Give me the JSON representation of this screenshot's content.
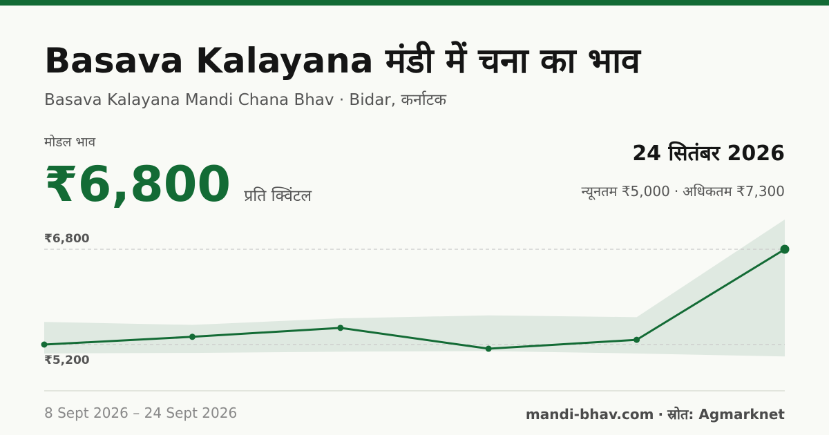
{
  "header": {
    "title": "Basava Kalayana मंडी में चना का भाव",
    "subtitle": "Basava Kalayana Mandi Chana Bhav · Bidar, कर्नाटक"
  },
  "price": {
    "label": "मोडल भाव",
    "value": "₹6,800",
    "unit": "प्रति क्विंटल"
  },
  "summary": {
    "date": "24 सितंबर 2026",
    "min_text": "न्यूनतम ₹5,000",
    "separator": "·",
    "max_text": "अधिकतम ₹7,300"
  },
  "chart_data": {
    "type": "line",
    "x": [
      "8 Sept 2026",
      "",
      "",
      "",
      "",
      "24 Sept 2026"
    ],
    "series": [
      {
        "values": [
          5200,
          5330,
          5480,
          5130,
          5280,
          6800
        ]
      }
    ],
    "band": {
      "min": [
        5050,
        5060,
        5080,
        5090,
        5050,
        5000
      ],
      "max": [
        5580,
        5530,
        5640,
        5690,
        5660,
        7300
      ]
    },
    "y_ticks": [
      {
        "value": 6800,
        "label": "₹6,800"
      },
      {
        "value": 5200,
        "label": "₹5,200"
      }
    ],
    "grid": "dashed reference lines at labelled values",
    "colors": {
      "line": "#136b35",
      "band": "#dfe9e1",
      "grid": "#c9c9c9"
    }
  },
  "footer": {
    "period": "8 Sept 2026 – 24 Sept 2026",
    "site": "mandi-bhav.com",
    "separator": "·",
    "source": "स्रोत: Agmarknet"
  }
}
